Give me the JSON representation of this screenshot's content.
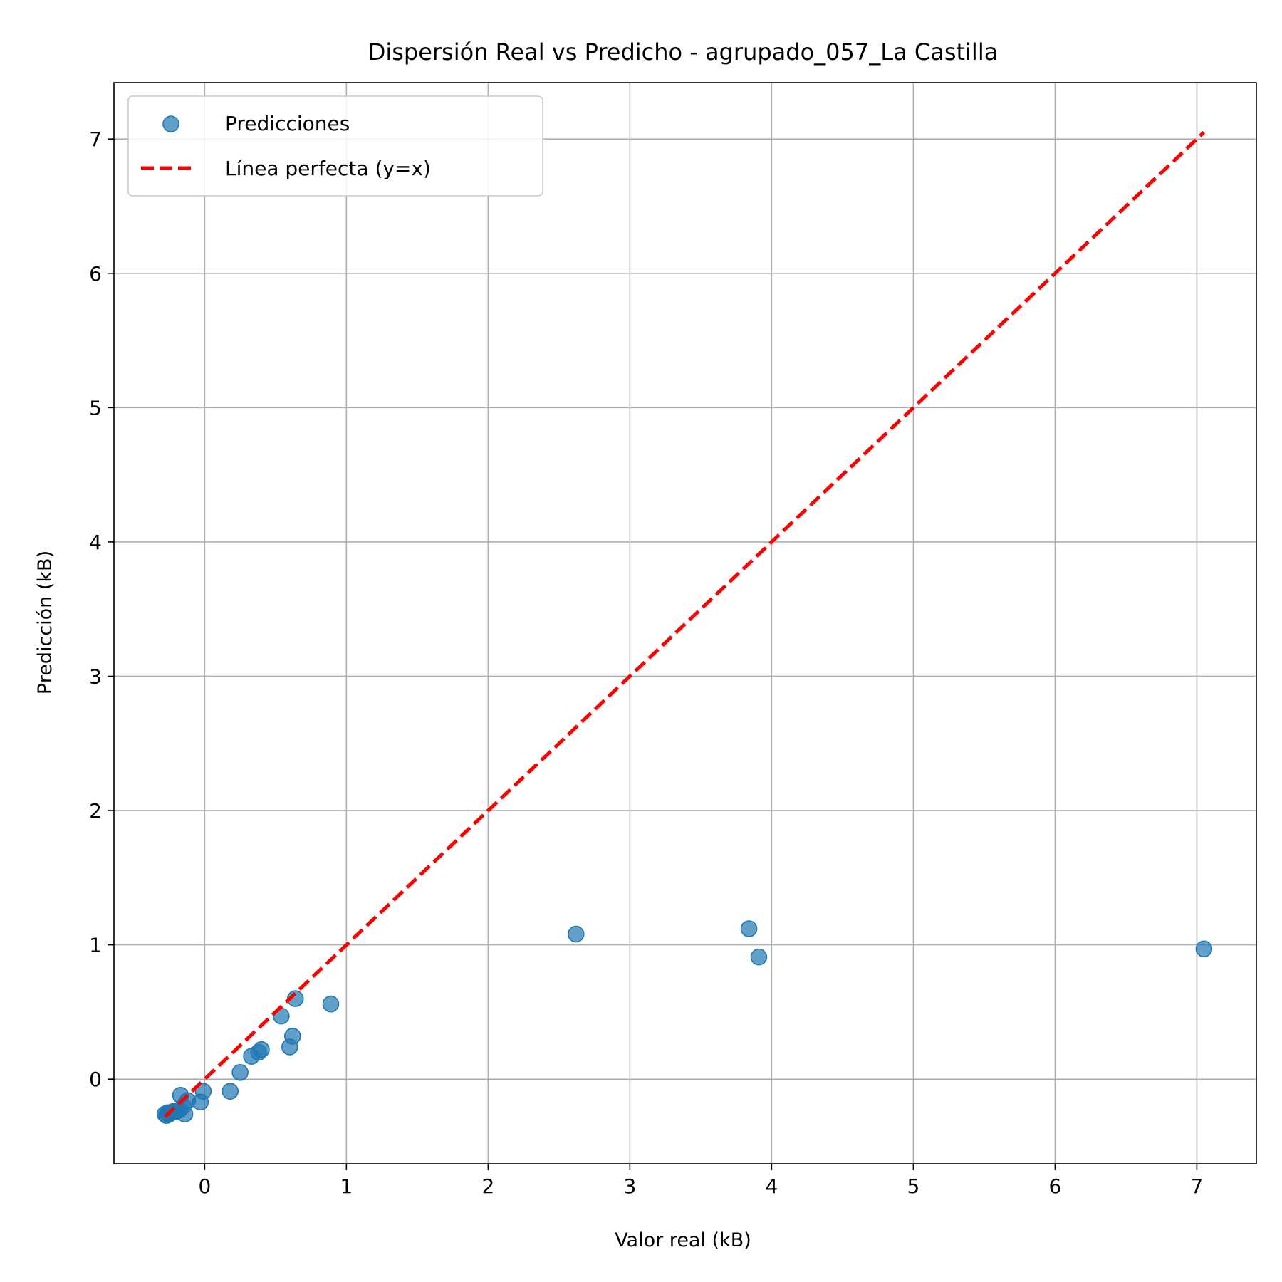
{
  "chart_data": {
    "type": "scatter",
    "title": "Dispersión Real vs Predicho - agrupado_057_La Castilla",
    "xlabel": "Valor real (kB)",
    "ylabel": "Predicción (kB)",
    "xlim": [
      -0.64,
      7.42
    ],
    "ylim": [
      -0.63,
      7.42
    ],
    "xticks": [
      0,
      1,
      2,
      3,
      4,
      5,
      6,
      7
    ],
    "yticks": [
      0,
      1,
      2,
      3,
      4,
      5,
      6,
      7
    ],
    "grid": true,
    "legend_position": "top-left",
    "series": [
      {
        "name": "Predicciones",
        "kind": "scatter",
        "color": "#1f77b4",
        "points": [
          {
            "x": -0.28,
            "y": -0.26
          },
          {
            "x": -0.27,
            "y": -0.27
          },
          {
            "x": -0.26,
            "y": -0.25
          },
          {
            "x": -0.25,
            "y": -0.26
          },
          {
            "x": -0.24,
            "y": -0.25
          },
          {
            "x": -0.22,
            "y": -0.24
          },
          {
            "x": -0.2,
            "y": -0.24
          },
          {
            "x": -0.18,
            "y": -0.23
          },
          {
            "x": -0.17,
            "y": -0.12
          },
          {
            "x": -0.15,
            "y": -0.2
          },
          {
            "x": -0.14,
            "y": -0.26
          },
          {
            "x": -0.12,
            "y": -0.16
          },
          {
            "x": -0.03,
            "y": -0.17
          },
          {
            "x": -0.01,
            "y": -0.09
          },
          {
            "x": 0.18,
            "y": -0.09
          },
          {
            "x": 0.25,
            "y": 0.05
          },
          {
            "x": 0.33,
            "y": 0.17
          },
          {
            "x": 0.38,
            "y": 0.2
          },
          {
            "x": 0.4,
            "y": 0.22
          },
          {
            "x": 0.54,
            "y": 0.47
          },
          {
            "x": 0.6,
            "y": 0.24
          },
          {
            "x": 0.62,
            "y": 0.32
          },
          {
            "x": 0.64,
            "y": 0.6
          },
          {
            "x": 0.89,
            "y": 0.56
          },
          {
            "x": 2.62,
            "y": 1.08
          },
          {
            "x": 3.84,
            "y": 1.12
          },
          {
            "x": 3.91,
            "y": 0.91
          },
          {
            "x": 7.05,
            "y": 0.97
          }
        ]
      },
      {
        "name": "Línea perfecta (y=x)",
        "kind": "line",
        "color": "#ff0000",
        "dash": "dashed",
        "points": [
          {
            "x": -0.28,
            "y": -0.28
          },
          {
            "x": 7.05,
            "y": 7.05
          }
        ]
      }
    ]
  }
}
